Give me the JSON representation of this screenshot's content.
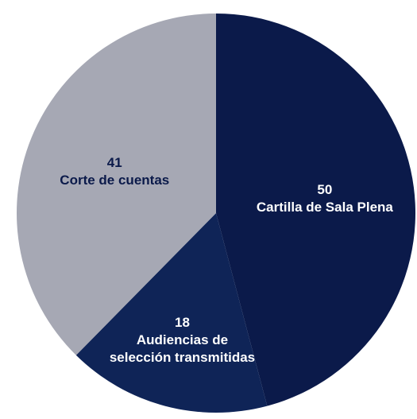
{
  "chart_data": {
    "type": "pie",
    "categories": [
      "Cartilla de Sala Plena",
      "Audiencias de selección transmitidas",
      "Corte de cuentas"
    ],
    "values": [
      50,
      18,
      41
    ],
    "colors": [
      "#0b1a4a",
      "#0f2457",
      "#a6a8b4"
    ],
    "start_angle": 0,
    "direction": "clockwise"
  }
}
